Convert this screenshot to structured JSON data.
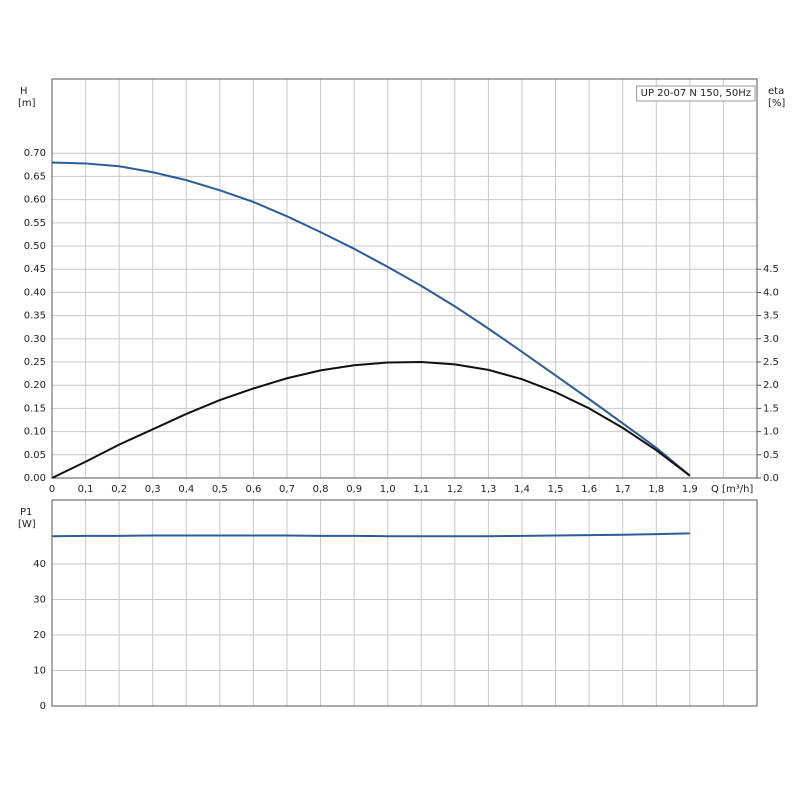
{
  "chart_data": [
    {
      "type": "line",
      "title": "UP 20-07 N 150, 50Hz",
      "ylabel": "H",
      "yunit": "[m]",
      "y2label": "eta",
      "y2unit": "[%]",
      "xlabel": "Q [m³/h]",
      "x": [
        0,
        0.1,
        0.2,
        0.3,
        0.4,
        0.5,
        0.6,
        0.7,
        0.8,
        0.9,
        1.0,
        1.1,
        1.2,
        1.3,
        1.4,
        1.5,
        1.6,
        1.7,
        1.8,
        1.9
      ],
      "series": [
        {
          "color": "#2b5c9c",
          "values": [
            0.68,
            0.678,
            0.672,
            0.659,
            0.642,
            0.62,
            0.595,
            0.564,
            0.53,
            0.494,
            0.455,
            0.414,
            0.37,
            0.322,
            0.272,
            0.221,
            0.17,
            0.118,
            0.065,
            0.005
          ]
        },
        {
          "color": "#111111",
          "axis": "y2",
          "values": [
            0,
            0.35,
            0.72,
            1.05,
            1.38,
            1.68,
            1.93,
            2.15,
            2.32,
            2.43,
            2.49,
            2.5,
            2.45,
            2.33,
            2.13,
            1.85,
            1.5,
            1.08,
            0.6,
            0.05
          ]
        }
      ],
      "xlim": [
        0,
        2.1
      ],
      "xticks": [
        0,
        {
          "value": 0.1,
          "label": "0,1"
        },
        {
          "value": 0.2,
          "label": "0,2"
        },
        {
          "value": 0.3,
          "label": "0,3"
        },
        {
          "value": 0.4,
          "label": "0,4"
        },
        {
          "value": 0.5,
          "label": "0,5"
        },
        {
          "value": 0.6,
          "label": "0,6"
        },
        {
          "value": 0.7,
          "label": "0,7"
        },
        {
          "value": 0.8,
          "label": "0,8"
        },
        {
          "value": 0.9,
          "label": "0,9"
        },
        {
          "value": 1.0,
          "label": "1,0"
        },
        {
          "value": 1.1,
          "label": "1,1"
        },
        {
          "value": 1.2,
          "label": "1,2"
        },
        {
          "value": 1.3,
          "label": "1,3"
        },
        {
          "value": 1.4,
          "label": "1,4"
        },
        {
          "value": 1.5,
          "label": "1,5"
        },
        {
          "value": 1.6,
          "label": "1,6"
        },
        {
          "value": 1.7,
          "label": "1,7"
        },
        {
          "value": 1.8,
          "label": "1,8"
        },
        {
          "value": 1.9,
          "label": "1,9"
        }
      ],
      "ylim": [
        0,
        0.86
      ],
      "yticks": [
        {
          "value": 0,
          "label": "0.00"
        },
        {
          "value": 0.05,
          "label": "0.05"
        },
        {
          "value": 0.1,
          "label": "0.10"
        },
        {
          "value": 0.15,
          "label": "0.15"
        },
        {
          "value": 0.2,
          "label": "0.20"
        },
        {
          "value": 0.25,
          "label": "0.25"
        },
        {
          "value": 0.3,
          "label": "0.30"
        },
        {
          "value": 0.35,
          "label": "0.35"
        },
        {
          "value": 0.4,
          "label": "0.40"
        },
        {
          "value": 0.45,
          "label": "0.45"
        },
        {
          "value": 0.5,
          "label": "0.50"
        },
        {
          "value": 0.55,
          "label": "0.55"
        },
        {
          "value": 0.6,
          "label": "0.60"
        },
        {
          "value": 0.65,
          "label": "0.65"
        },
        {
          "value": 0.7,
          "label": "0.70"
        }
      ],
      "y2lim": [
        0,
        8.6
      ],
      "y2ticks": [
        {
          "value": 0,
          "label": "0.0"
        },
        0.5,
        {
          "value": 1,
          "label": "1.0"
        },
        1.5,
        {
          "value": 2,
          "label": "2.0"
        },
        2.5,
        {
          "value": 3,
          "label": "3.0"
        },
        3.5,
        {
          "value": 4,
          "label": "4.0"
        },
        4.5
      ],
      "grid": true
    },
    {
      "type": "line",
      "ylabel": "P1",
      "yunit": "[W]",
      "x": [
        0,
        0.1,
        0.2,
        0.3,
        0.4,
        0.5,
        0.6,
        0.7,
        0.8,
        0.9,
        1.0,
        1.1,
        1.2,
        1.3,
        1.4,
        1.5,
        1.6,
        1.7,
        1.8,
        1.9
      ],
      "series": [
        {
          "color": "#2b5c9c",
          "values": [
            47.8,
            47.9,
            47.9,
            48.0,
            48.0,
            48.0,
            48.0,
            48.0,
            47.9,
            47.9,
            47.8,
            47.8,
            47.8,
            47.8,
            47.9,
            48.0,
            48.1,
            48.2,
            48.4,
            48.6
          ]
        }
      ],
      "xlim": [
        0,
        2.1
      ],
      "ylim": [
        0,
        58
      ],
      "yticks": [
        0,
        10,
        20,
        30,
        40
      ],
      "grid": true
    }
  ]
}
